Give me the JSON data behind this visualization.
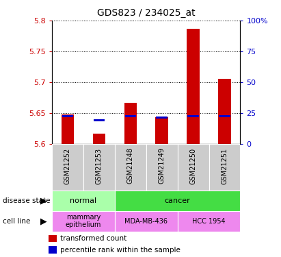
{
  "title": "GDS823 / 234025_at",
  "samples": [
    "GSM21252",
    "GSM21253",
    "GSM21248",
    "GSM21249",
    "GSM21250",
    "GSM21251"
  ],
  "transformed_counts": [
    5.648,
    5.617,
    5.667,
    5.643,
    5.787,
    5.705
  ],
  "percentile_ranks": [
    5.645,
    5.638,
    5.645,
    5.643,
    5.645,
    5.645
  ],
  "ylim": [
    5.6,
    5.8
  ],
  "yticks_left": [
    5.6,
    5.65,
    5.7,
    5.75,
    5.8
  ],
  "yticks_right_labels": [
    "0",
    "25",
    "50",
    "75",
    "100%"
  ],
  "yticks_right_vals": [
    5.6,
    5.65,
    5.7,
    5.75,
    5.8
  ],
  "bar_color": "#cc0000",
  "blue_color": "#0000cc",
  "bar_bottom": 5.6,
  "disease_state_groups": [
    {
      "label": "normal",
      "cols": [
        0,
        1
      ],
      "color": "#aaffaa"
    },
    {
      "label": "cancer",
      "cols": [
        2,
        3,
        4,
        5
      ],
      "color": "#44dd44"
    }
  ],
  "cell_line_groups": [
    {
      "label": "mammary\nepithelium",
      "cols": [
        0,
        1
      ],
      "color": "#ee88ee"
    },
    {
      "label": "MDA-MB-436",
      "cols": [
        2,
        3
      ],
      "color": "#ee88ee"
    },
    {
      "label": "HCC 1954",
      "cols": [
        4,
        5
      ],
      "color": "#ee88ee"
    }
  ],
  "left_label_color": "#cc0000",
  "right_label_color": "#0000cc",
  "grid_color": "#000000",
  "sample_bg_color": "#cccccc",
  "bg_color": "#ffffff",
  "bar_width": 0.4
}
